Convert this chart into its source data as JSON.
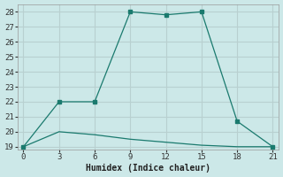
{
  "xlabel": "Humidex (Indice chaleur)",
  "bg_color": "#cce8e8",
  "grid_color": "#b8d0d0",
  "line_color": "#1a7a6e",
  "line1_x": [
    0,
    3,
    6,
    9,
    12,
    15,
    18,
    21
  ],
  "line1_y": [
    19,
    22,
    22,
    28,
    27.8,
    28,
    20.7,
    19
  ],
  "line2_x": [
    0,
    3,
    6,
    9,
    12,
    15,
    18,
    21
  ],
  "line2_y": [
    19,
    20,
    19.8,
    19.5,
    19.3,
    19.1,
    19.0,
    19
  ],
  "xlim": [
    -0.5,
    21.5
  ],
  "ylim": [
    18.8,
    28.5
  ],
  "xticks": [
    0,
    3,
    6,
    9,
    12,
    15,
    18,
    21
  ],
  "yticks": [
    19,
    20,
    21,
    22,
    23,
    24,
    25,
    26,
    27,
    28
  ],
  "xlabel_fontsize": 7,
  "tick_fontsize": 6.5
}
